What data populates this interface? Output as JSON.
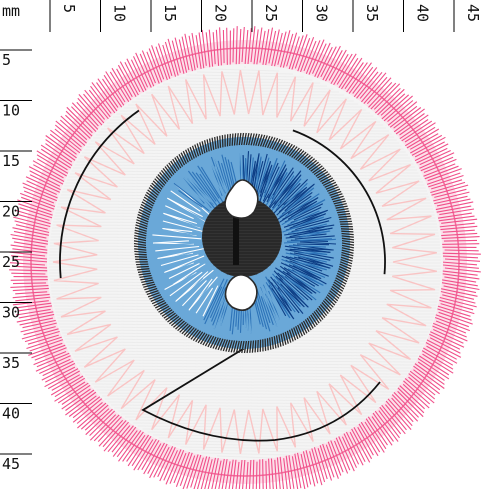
{
  "ruler": {
    "unit": "mm",
    "top_labels": [
      "5",
      "10",
      "15",
      "20",
      "25",
      "30",
      "35",
      "40",
      "45"
    ],
    "left_labels": [
      "5",
      "10",
      "15",
      "20",
      "25",
      "30",
      "35",
      "40",
      "45"
    ]
  },
  "colors": {
    "outer_ring": "#f0508a",
    "outer_ring_light": "#f7a6c4",
    "fill_light": "#ececec",
    "pink_zigzag": "#f9c4c4",
    "iris_light": "#6aa8d8",
    "iris_mid": "#2d73b8",
    "iris_dark": "#0d3e86",
    "iris_outline": "#2a2a2a",
    "pupil": "#333333",
    "highlight": "#ffffff",
    "ink_line": "#111111"
  },
  "icons": {
    "artwork": "embroidered-eye-icon"
  }
}
